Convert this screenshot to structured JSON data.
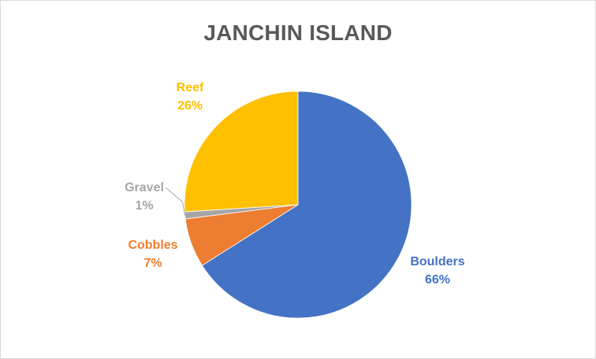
{
  "chart_data": {
    "type": "pie",
    "title": "JANCHIN ISLAND",
    "start_angle_deg": 0,
    "direction": "clockwise",
    "slices": [
      {
        "label": "Boulders",
        "value": 66,
        "value_label": "66%",
        "color": "#4472C4"
      },
      {
        "label": "Cobbles",
        "value": 7,
        "value_label": "7%",
        "color": "#ED7D31"
      },
      {
        "label": "Gravel",
        "value": 1,
        "value_label": "1%",
        "color": "#A5A5A5"
      },
      {
        "label": "Reef",
        "value": 26,
        "value_label": "26%",
        "color": "#FFC000"
      }
    ],
    "legend": "none",
    "data_labels": "outside with category name and percentage"
  }
}
